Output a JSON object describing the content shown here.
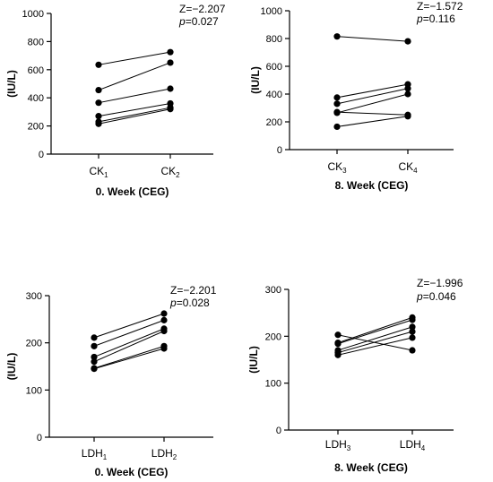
{
  "chart_data": [
    {
      "type": "scatter",
      "ylabel": "(IU/L)",
      "ylim": [
        0,
        1000
      ],
      "yticks": [
        "0",
        "200",
        "400",
        "600",
        "800",
        "1000"
      ],
      "categories": [
        {
          "base": "CK",
          "sub": "1"
        },
        {
          "base": "CK",
          "sub": "2"
        }
      ],
      "xlabel": "0. Week (CEG)",
      "stat_z": "Z=−2.207",
      "stat_p_label": "p",
      "stat_p_value": "=0.027",
      "pairs": [
        [
          635,
          725
        ],
        [
          455,
          650
        ],
        [
          365,
          465
        ],
        [
          270,
          360
        ],
        [
          230,
          330
        ],
        [
          215,
          320
        ]
      ]
    },
    {
      "type": "scatter",
      "ylabel": "(IU/L)",
      "ylim": [
        0,
        1000
      ],
      "yticks": [
        "0",
        "200",
        "400",
        "600",
        "800",
        "1000"
      ],
      "categories": [
        {
          "base": "CK",
          "sub": "3"
        },
        {
          "base": "CK",
          "sub": "4"
        }
      ],
      "xlabel": "8. Week (CEG)",
      "stat_z": "Z=−1.572",
      "stat_p_label": "p",
      "stat_p_value": "=0.116",
      "pairs": [
        [
          815,
          780
        ],
        [
          375,
          470
        ],
        [
          330,
          440
        ],
        [
          265,
          400
        ],
        [
          270,
          250
        ],
        [
          165,
          240
        ]
      ]
    },
    {
      "type": "scatter",
      "ylabel": "(IU/L)",
      "ylim": [
        0,
        300
      ],
      "yticks": [
        "0",
        "100",
        "200",
        "300"
      ],
      "categories": [
        {
          "base": "LDH",
          "sub": "1"
        },
        {
          "base": "LDH",
          "sub": "2"
        }
      ],
      "xlabel": "0. Week (CEG)",
      "stat_z": "Z=−2.201",
      "stat_p_label": "p",
      "stat_p_value": "=0.028",
      "pairs": [
        [
          211,
          262
        ],
        [
          193,
          248
        ],
        [
          170,
          230
        ],
        [
          160,
          225
        ],
        [
          146,
          193
        ],
        [
          145,
          188
        ]
      ]
    },
    {
      "type": "scatter",
      "ylabel": "(IU/L)",
      "ylim": [
        0,
        300
      ],
      "yticks": [
        "0",
        "100",
        "200",
        "300"
      ],
      "categories": [
        {
          "base": "LDH",
          "sub": "3"
        },
        {
          "base": "LDH",
          "sub": "4"
        }
      ],
      "xlabel": "8. Week (CEG)",
      "stat_z": "Z=−1.996",
      "stat_p_label": "p",
      "stat_p_value": "=0.046",
      "pairs": [
        [
          203,
          170
        ],
        [
          186,
          240
        ],
        [
          184,
          235
        ],
        [
          170,
          220
        ],
        [
          165,
          210
        ],
        [
          160,
          197
        ]
      ]
    }
  ]
}
